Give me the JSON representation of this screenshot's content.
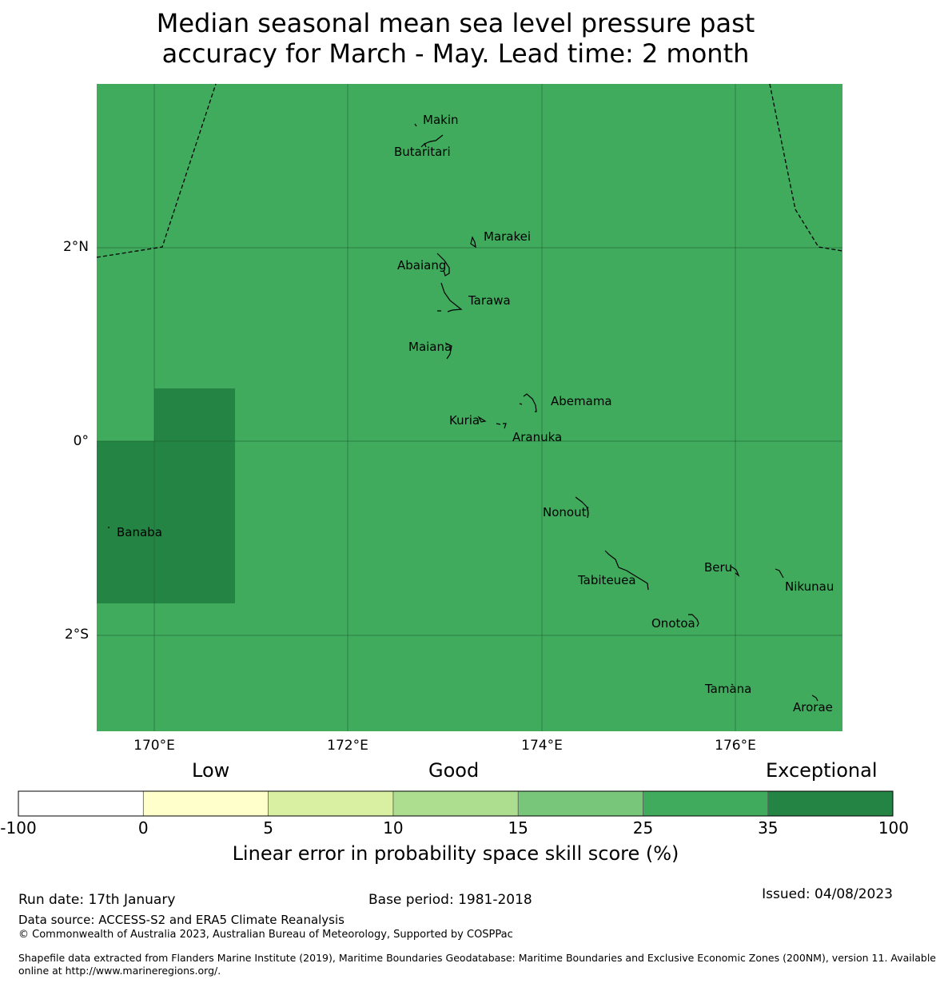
{
  "title": {
    "line1": "Median seasonal mean sea level pressure past",
    "line2": "accuracy for March - May. Lead time: 2 month"
  },
  "map": {
    "lat_labels": [
      "2°N",
      "0°",
      "2°S"
    ],
    "lon_labels": [
      "170°E",
      "172°E",
      "174°E",
      "176°E"
    ],
    "colors": {
      "base": "#41ab5d",
      "high": "#238443",
      "grid": "#1f5c33"
    },
    "islands": [
      "Makin",
      "Butaritari",
      "Marakei",
      "Abaiang",
      "Tarawa",
      "Maiana",
      "Abemama",
      "Kuria",
      "Aranuka",
      "Banaba",
      "Nonouti",
      "Beru",
      "Tabiteuea",
      "Nikunau",
      "Onotoa",
      "Tamana",
      "Arorae"
    ]
  },
  "legend": {
    "categories": [
      "Low",
      "Good",
      "Exceptional"
    ],
    "ticks": [
      "-100",
      "0",
      "5",
      "10",
      "15",
      "25",
      "35",
      "100"
    ],
    "colors": [
      "#ffffff",
      "#ffffcc",
      "#d9f0a3",
      "#addd8e",
      "#78c679",
      "#41ab5d",
      "#238443"
    ],
    "title": "Linear error in probability space skill score (%)"
  },
  "footer": {
    "run_date": "Run date: 17th January",
    "base_period": "Base period: 1981-2018",
    "issued": "Issued: 04/08/2023",
    "data_source": "Data source: ACCESS-S2 and ERA5 Climate Reanalysis",
    "copyright": "© Commonwealth of Australia 2023, Australian Bureau of Meteorology, Supported by COSPPac",
    "shapefile_line1": "Shapefile data extracted from Flanders Marine Institute (2019), Maritime Boundaries Geodatabase: Maritime Boundaries and Exclusive Economic Zones (200NM), version 11. Available",
    "shapefile_line2": "online at http://www.marineregions.org/."
  }
}
